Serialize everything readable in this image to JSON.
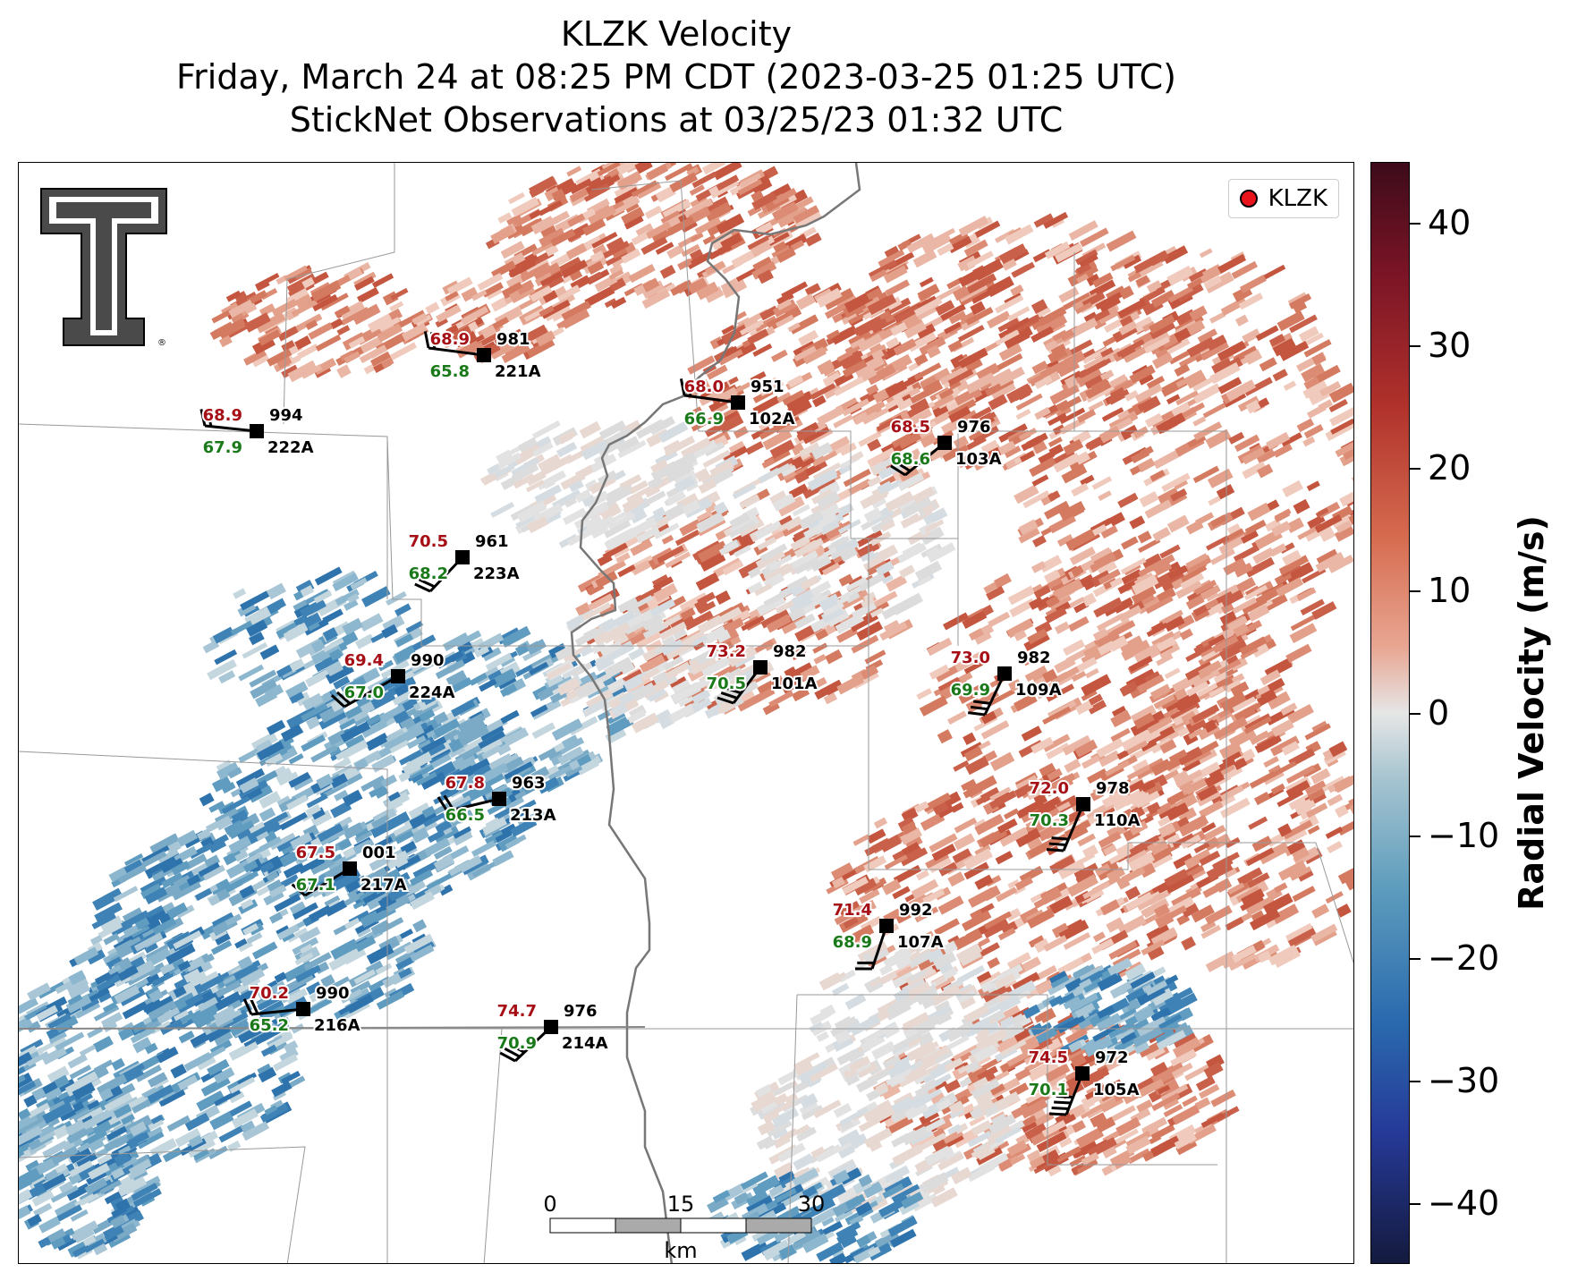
{
  "title": {
    "line1": "KLZK Velocity",
    "line2": "Friday, March 24 at 08:25 PM CDT (2023-03-25 01:25 UTC)",
    "line3": "StickNet Observations at 03/25/23 01:32 UTC"
  },
  "legend": {
    "label": "KLZK",
    "marker_color": "#e8131b"
  },
  "colorbar": {
    "label": "Radial Velocity (m/s)",
    "range": [
      -45,
      45
    ],
    "ticks": [
      "40",
      "30",
      "20",
      "10",
      "0",
      "−10",
      "−20",
      "−30",
      "−40"
    ],
    "colors": {
      "positive": "#c8553d",
      "negative": "#2f7fb5",
      "zero": "#e6e6e6"
    }
  },
  "scale_bar": {
    "labels": [
      "0",
      "15",
      "30"
    ],
    "unit": "km"
  },
  "stations": [
    {
      "id": "221A",
      "temp": "68.9",
      "dew": "65.8",
      "pres": "981"
    },
    {
      "id": "222A",
      "temp": "68.9",
      "dew": "67.9",
      "pres": "994"
    },
    {
      "id": "102A",
      "temp": "68.0",
      "dew": "66.9",
      "pres": "951"
    },
    {
      "id": "103A",
      "temp": "68.5",
      "dew": "68.6",
      "pres": "976"
    },
    {
      "id": "223A",
      "temp": "70.5",
      "dew": "68.2",
      "pres": "961"
    },
    {
      "id": "224A",
      "temp": "69.4",
      "dew": "67.0",
      "pres": "990"
    },
    {
      "id": "101A",
      "temp": "73.2",
      "dew": "70.5",
      "pres": "982"
    },
    {
      "id": "109A",
      "temp": "73.0",
      "dew": "69.9",
      "pres": "982"
    },
    {
      "id": "213A",
      "temp": "67.8",
      "dew": "66.5",
      "pres": "963"
    },
    {
      "id": "110A",
      "temp": "72.0",
      "dew": "70.3",
      "pres": "978"
    },
    {
      "id": "217A",
      "temp": "67.5",
      "dew": "67.1",
      "pres": "001"
    },
    {
      "id": "107A",
      "temp": "71.4",
      "dew": "68.9",
      "pres": "992"
    },
    {
      "id": "216A",
      "temp": "70.2",
      "dew": "65.2",
      "pres": "990"
    },
    {
      "id": "214A",
      "temp": "74.7",
      "dew": "70.9",
      "pres": "976"
    },
    {
      "id": "105A",
      "temp": "74.5",
      "dew": "70.1",
      "pres": "972"
    }
  ],
  "text_colors": {
    "temp": "#a50f15",
    "dew": "#1a7a1a"
  }
}
